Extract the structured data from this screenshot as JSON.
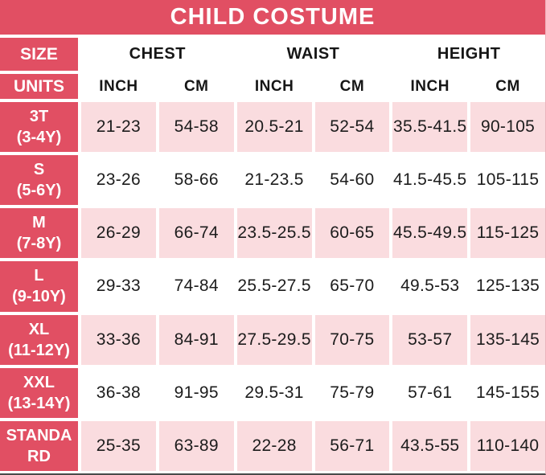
{
  "title": "CHILD COSTUME",
  "colors": {
    "accent": "#E14F63",
    "row_tint": "#FADCDF",
    "text": "#1C1C1C",
    "header_text": "#FFFFFF"
  },
  "header": {
    "size_label": "SIZE",
    "units_label": "UNITS",
    "groups": [
      "CHEST",
      "WAIST",
      "HEIGHT"
    ],
    "units": [
      "INCH",
      "CM",
      "INCH",
      "CM",
      "INCH",
      "CM"
    ]
  },
  "rows": [
    {
      "size": "3T",
      "age": "(3-4Y)",
      "values": [
        "21-23",
        "54-58",
        "20.5-21",
        "52-54",
        "35.5-41.5",
        "90-105"
      ]
    },
    {
      "size": "S",
      "age": "(5-6Y)",
      "values": [
        "23-26",
        "58-66",
        "21-23.5",
        "54-60",
        "41.5-45.5",
        "105-115"
      ]
    },
    {
      "size": "M",
      "age": "(7-8Y)",
      "values": [
        "26-29",
        "66-74",
        "23.5-25.5",
        "60-65",
        "45.5-49.5",
        "115-125"
      ]
    },
    {
      "size": "L",
      "age": "(9-10Y)",
      "values": [
        "29-33",
        "74-84",
        "25.5-27.5",
        "65-70",
        "49.5-53",
        "125-135"
      ]
    },
    {
      "size": "XL",
      "age": "(11-12Y)",
      "values": [
        "33-36",
        "84-91",
        "27.5-29.5",
        "70-75",
        "53-57",
        "135-145"
      ]
    },
    {
      "size": "XXL",
      "age": "(13-14Y)",
      "values": [
        "36-38",
        "91-95",
        "29.5-31",
        "75-79",
        "57-61",
        "145-155"
      ]
    },
    {
      "size": "STANDARD",
      "age": "",
      "values": [
        "25-35",
        "63-89",
        "22-28",
        "56-71",
        "43.5-55",
        "110-140"
      ]
    }
  ],
  "chart_data": {
    "type": "table",
    "title": "CHILD COSTUME",
    "columns": [
      "SIZE",
      "CHEST INCH",
      "CHEST CM",
      "WAIST INCH",
      "WAIST CM",
      "HEIGHT INCH",
      "HEIGHT CM"
    ],
    "rows": [
      [
        "3T (3-4Y)",
        "21-23",
        "54-58",
        "20.5-21",
        "52-54",
        "35.5-41.5",
        "90-105"
      ],
      [
        "S (5-6Y)",
        "23-26",
        "58-66",
        "21-23.5",
        "54-60",
        "41.5-45.5",
        "105-115"
      ],
      [
        "M (7-8Y)",
        "26-29",
        "66-74",
        "23.5-25.5",
        "60-65",
        "45.5-49.5",
        "115-125"
      ],
      [
        "L (9-10Y)",
        "29-33",
        "74-84",
        "25.5-27.5",
        "65-70",
        "49.5-53",
        "125-135"
      ],
      [
        "XL (11-12Y)",
        "33-36",
        "84-91",
        "27.5-29.5",
        "70-75",
        "53-57",
        "135-145"
      ],
      [
        "XXL (13-14Y)",
        "36-38",
        "91-95",
        "29.5-31",
        "75-79",
        "57-61",
        "145-155"
      ],
      [
        "STANDARD",
        "25-35",
        "63-89",
        "22-28",
        "56-71",
        "43.5-55",
        "110-140"
      ]
    ]
  }
}
